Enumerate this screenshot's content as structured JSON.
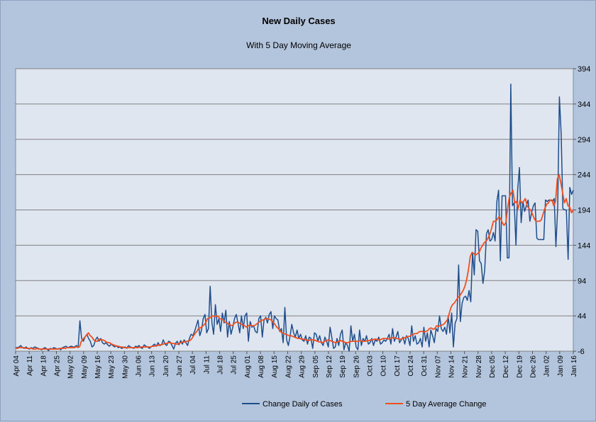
{
  "chart_data": {
    "type": "line",
    "title": "New Daily Cases",
    "subtitle": "With 5 Day Moving Average",
    "y_axis_position": "right",
    "ylim": [
      -6,
      394
    ],
    "yticks": [
      -6,
      44,
      94,
      144,
      194,
      244,
      294,
      344,
      394
    ],
    "grid": true,
    "legend_position": "bottom",
    "x_start": "2020-04-04",
    "x_end": "2021-01-16",
    "xticks": [
      "Apr 04",
      "Apr 11",
      "Apr 18",
      "Apr 25",
      "May 02",
      "May 09",
      "May 16",
      "May 23",
      "May 30",
      "Jun 06",
      "Jun 13",
      "Jun 20",
      "Jun 27",
      "Jul 04",
      "Jul 11",
      "Jul 18",
      "Jul 25",
      "Aug 01",
      "Aug 08",
      "Aug 15",
      "Aug 22",
      "Aug 29",
      "Sep 05",
      "Sep 12",
      "Sep 19",
      "Sep 26",
      "Oct 03",
      "Oct 10",
      "Oct 17",
      "Oct 24",
      "Oct 31",
      "Nov 07",
      "Nov 14",
      "Nov 21",
      "Nov 28",
      "Dec 05",
      "Dec 12",
      "Dec 19",
      "Dec 26",
      "Jan 02",
      "Jan 09",
      "Jan 16"
    ],
    "colors": {
      "daily": "#1f4e8c",
      "average": "#f04f1f",
      "plot_bg": "#e0e6f0",
      "page_bg": "#b3c4dd",
      "grid": "#808080"
    },
    "series": [
      {
        "name": "Change Daily of Cases",
        "key": "daily",
        "values": [
          -1,
          -1,
          0,
          2,
          -1,
          -2,
          0,
          -2,
          -3,
          -1,
          -2,
          0,
          -1,
          -2,
          -3,
          -4,
          -2,
          -1,
          -3,
          -5,
          -2,
          -3,
          -1,
          -2,
          -3,
          -2,
          -4,
          -1,
          0,
          1,
          -1,
          0,
          1,
          0,
          0,
          2,
          -1,
          37,
          12,
          8,
          14,
          18,
          12,
          8,
          0,
          2,
          10,
          14,
          8,
          12,
          6,
          4,
          6,
          3,
          1,
          4,
          2,
          0,
          2,
          -1,
          0,
          -2,
          -1,
          0,
          -2,
          2,
          0,
          -1,
          -2,
          1,
          0,
          2,
          -1,
          -2,
          3,
          1,
          0,
          -2,
          0,
          2,
          4,
          1,
          6,
          2,
          3,
          10,
          4,
          2,
          8,
          7,
          2,
          -3,
          5,
          8,
          3,
          9,
          4,
          10,
          6,
          2,
          12,
          18,
          16,
          22,
          30,
          38,
          16,
          24,
          40,
          46,
          20,
          26,
          86,
          34,
          18,
          60,
          32,
          40,
          22,
          48,
          34,
          52,
          14,
          36,
          18,
          28,
          40,
          46,
          34,
          20,
          44,
          26,
          44,
          48,
          8,
          36,
          28,
          30,
          22,
          20,
          40,
          44,
          14,
          38,
          42,
          34,
          46,
          50,
          26,
          44,
          40,
          38,
          22,
          26,
          6,
          56,
          10,
          2,
          16,
          32,
          20,
          14,
          24,
          12,
          18,
          10,
          8,
          16,
          4,
          14,
          12,
          -2,
          20,
          18,
          8,
          16,
          6,
          2,
          14,
          8,
          0,
          28,
          14,
          -2,
          0,
          12,
          2,
          18,
          24,
          -4,
          6,
          2,
          -6,
          30,
          8,
          18,
          0,
          -4,
          24,
          2,
          12,
          8,
          16,
          4,
          6,
          12,
          2,
          10,
          8,
          14,
          4,
          6,
          10,
          8,
          12,
          18,
          4,
          26,
          8,
          14,
          22,
          6,
          10,
          14,
          4,
          16,
          12,
          2,
          30,
          8,
          16,
          4,
          6,
          12,
          0,
          28,
          8,
          20,
          0,
          24,
          16,
          6,
          26,
          22,
          44,
          26,
          22,
          28,
          18,
          44,
          20,
          48,
          0,
          34,
          40,
          116,
          36,
          62,
          70,
          72,
          66,
          80,
          64,
          134,
          102,
          166,
          164,
          122,
          118,
          90,
          108,
          160,
          166,
          150,
          152,
          162,
          150,
          206,
          222,
          122,
          214,
          214,
          214,
          126,
          126,
          372,
          200,
          204,
          144,
          222,
          254,
          176,
          206,
          192,
          200,
          208,
          178,
          190,
          200,
          204,
          154,
          152,
          152,
          152,
          152,
          208,
          206,
          208,
          208,
          206,
          210,
          142,
          198,
          354,
          302,
          196,
          194,
          194,
          124,
          226,
          216,
          222
        ]
      },
      {
        "name": "5 Day Average Change",
        "key": "average",
        "values": [
          -2,
          -2,
          -1,
          -1,
          -1,
          -1,
          -2,
          -2,
          -2,
          -2,
          -3,
          -3,
          -2,
          -3,
          -3,
          -3,
          -3,
          -3,
          -3,
          -3,
          -3,
          -3,
          -3,
          -3,
          -3,
          -2,
          -2,
          -2,
          -2,
          -1,
          -1,
          -1,
          -1,
          -1,
          0,
          0,
          0,
          8,
          11,
          14,
          17,
          20,
          16,
          14,
          10,
          8,
          8,
          11,
          10,
          10,
          9,
          7,
          6,
          6,
          4,
          3,
          2,
          1,
          1,
          0,
          0,
          -1,
          -1,
          -1,
          -1,
          -1,
          -1,
          -1,
          -1,
          -1,
          0,
          0,
          0,
          0,
          0,
          0,
          0,
          1,
          1,
          2,
          2,
          3,
          3,
          4,
          5,
          5,
          6,
          6,
          5,
          5,
          4,
          4,
          5,
          6,
          7,
          7,
          8,
          8,
          9,
          11,
          15,
          19,
          22,
          26,
          27,
          29,
          31,
          34,
          40,
          41,
          42,
          44,
          43,
          44,
          43,
          40,
          39,
          38,
          35,
          34,
          32,
          31,
          30,
          33,
          35,
          35,
          34,
          32,
          31,
          30,
          28,
          30,
          31,
          30,
          30,
          31,
          33,
          35,
          37,
          38,
          39,
          40,
          40,
          39,
          38,
          35,
          32,
          28,
          26,
          22,
          20,
          19,
          18,
          17,
          16,
          16,
          15,
          14,
          13,
          12,
          12,
          11,
          11,
          10,
          10,
          9,
          10,
          10,
          10,
          9,
          8,
          7,
          7,
          6,
          8,
          9,
          10,
          9,
          8,
          7,
          6,
          7,
          8,
          9,
          8,
          7,
          6,
          6,
          7,
          8,
          8,
          8,
          8,
          8,
          9,
          8,
          8,
          8,
          9,
          9,
          10,
          10,
          11,
          11,
          10,
          10,
          11,
          12,
          12,
          12,
          11,
          12,
          13,
          13,
          12,
          12,
          11,
          11,
          12,
          13,
          14,
          15,
          15,
          17,
          18,
          19,
          19,
          21,
          22,
          22,
          21,
          22,
          23,
          26,
          27,
          25,
          26,
          30,
          29,
          30,
          31,
          32,
          35,
          38,
          46,
          55,
          60,
          62,
          66,
          70,
          72,
          76,
          80,
          86,
          96,
          110,
          128,
          134,
          132,
          130,
          132,
          134,
          140,
          144,
          148,
          150,
          154,
          160,
          168,
          178,
          178,
          180,
          184,
          182,
          176,
          172,
          176,
          196,
          212,
          218,
          222,
          204,
          206,
          196,
          208,
          204,
          206,
          210,
          200,
          196,
          194,
          188,
          182,
          178,
          178,
          178,
          180,
          188,
          196,
          202,
          204,
          208,
          208,
          200,
          206,
          238,
          244,
          232,
          218,
          204,
          210,
          200,
          198,
          190,
          194
        ]
      }
    ]
  }
}
